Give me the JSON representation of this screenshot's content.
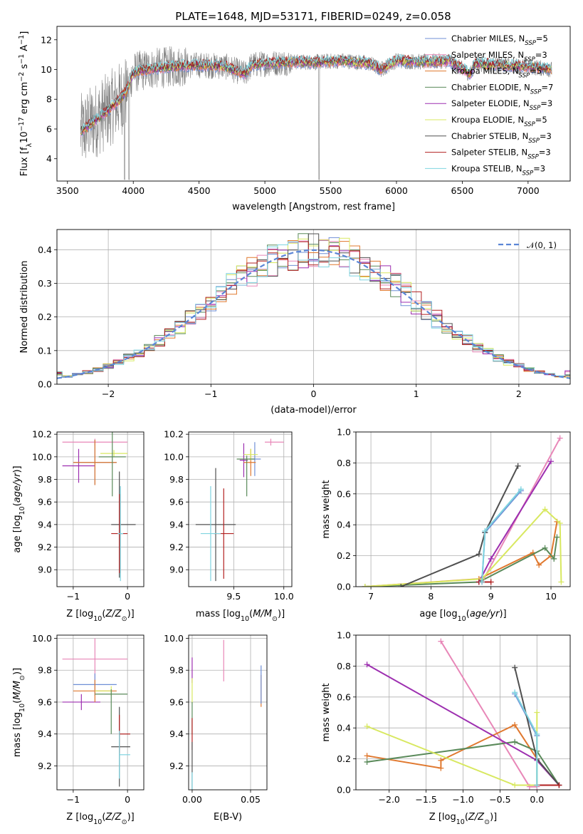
{
  "figure": {
    "title": "PLATE=1648, MJD=53171, FIBERID=0249, z=0.058"
  },
  "colors": {
    "Chabrier MILES": "#6f8fd6",
    "Salpeter MILES": "#e887b8",
    "Kroupa MILES": "#e0782e",
    "Chabrier ELODIE": "#5a8a5a",
    "Salpeter ELODIE": "#9d2fb0",
    "Kroupa ELODIE": "#d8e860",
    "Chabrier STELIB": "#505050",
    "Salpeter STELIB": "#b22020",
    "Kroupa STELIB": "#7fd4e0"
  },
  "chart_data": [
    {
      "id": "spectrum",
      "type": "line",
      "xlabel": "wavelength [Angstrom, rest frame]",
      "ylabel": "Flux [f_λ10^-17 erg cm^-2 s^-1 A^-1]",
      "xlim": [
        3420,
        7320
      ],
      "ylim": [
        2.5,
        12.9
      ],
      "xticks": [
        3500,
        4000,
        4500,
        5000,
        5500,
        6000,
        6500,
        7000
      ],
      "yticks": [
        4,
        6,
        8,
        10,
        12
      ],
      "grid": false,
      "legend": "top-right",
      "observed_color": "#808080",
      "observed_range": [
        3600,
        7180
      ],
      "legend_entries": [
        {
          "name": "Chabrier MILES",
          "label": "Chabrier MILES, N",
          "sub": "SSP",
          "suffix": "=5"
        },
        {
          "name": "Salpeter MILES",
          "label": "Salpeter MILES, N",
          "sub": "SSP",
          "suffix": "=3"
        },
        {
          "name": "Kroupa MILES",
          "label": "Kroupa MILES, N",
          "sub": "SSP",
          "suffix": "=5"
        },
        {
          "name": "Chabrier ELODIE",
          "label": "Chabrier ELODIE, N",
          "sub": "SSP",
          "suffix": "=7"
        },
        {
          "name": "Salpeter ELODIE",
          "label": "Salpeter ELODIE, N",
          "sub": "SSP",
          "suffix": "=3"
        },
        {
          "name": "Kroupa ELODIE",
          "label": "Kroupa ELODIE, N",
          "sub": "SSP",
          "suffix": "=5"
        },
        {
          "name": "Chabrier STELIB",
          "label": "Chabrier STELIB, N",
          "sub": "SSP",
          "suffix": "=3"
        },
        {
          "name": "Salpeter STELIB",
          "label": "Salpeter STELIB, N",
          "sub": "SSP",
          "suffix": "=3"
        },
        {
          "name": "Kroupa STELIB",
          "label": "Kroupa STELIB, N",
          "sub": "SSP",
          "suffix": "=3"
        }
      ],
      "model_continuum": {
        "x": [
          3600,
          3700,
          3800,
          3900,
          3950,
          4000,
          4100,
          4300,
          4500,
          4700,
          4850,
          4900,
          5000,
          5200,
          5400,
          5600,
          5800,
          5880,
          6000,
          6200,
          6400,
          6560,
          6600,
          6800,
          7000,
          7180
        ],
        "y": [
          5.8,
          6.5,
          7.2,
          8.0,
          8.6,
          9.8,
          10.0,
          10.2,
          10.3,
          10.2,
          9.7,
          10.3,
          10.4,
          10.5,
          10.5,
          10.6,
          10.4,
          10.0,
          10.6,
          10.5,
          10.6,
          9.7,
          10.4,
          10.3,
          10.2,
          10.0
        ]
      }
    },
    {
      "id": "residuals",
      "type": "histogram",
      "xlabel": "(data-model)/error",
      "ylabel": "Normed distribution",
      "xlim": [
        -2.5,
        2.5
      ],
      "ylim": [
        0,
        0.46
      ],
      "xticks": [
        -2,
        -1,
        0,
        1,
        2
      ],
      "yticks": [
        0.0,
        0.1,
        0.2,
        0.3,
        0.4
      ],
      "grid": true,
      "legend": "top-right",
      "reference": {
        "label": "𝒩(0, 1)",
        "mean": 0,
        "sd": 1,
        "color": "#5b86d6"
      },
      "bin_width": 0.1
    },
    {
      "id": "age_vs_Z",
      "type": "errorbar",
      "xlabel": "Z [log10(Z/Z⊙)]",
      "ylabel": "age [log10(age/yr)]",
      "xlim": [
        -1.3,
        0.3
      ],
      "ylim": [
        8.85,
        10.22
      ],
      "xticks": [
        -1,
        0
      ],
      "yticks": [
        9.0,
        9.2,
        9.4,
        9.6,
        9.8,
        10.0,
        10.2
      ],
      "grid": true,
      "points": [
        {
          "model": "Salpeter MILES",
          "x": -0.6,
          "xerr": [
            0.6,
            0.6
          ],
          "y": 10.13,
          "yerr": [
            0.03,
            0.03
          ]
        },
        {
          "model": "Salpeter ELODIE",
          "x": -0.9,
          "xerr": [
            0.3,
            0.3
          ],
          "y": 9.92,
          "yerr": [
            0.15,
            0.15
          ]
        },
        {
          "model": "Chabrier MILES",
          "x": -0.6,
          "xerr": [
            0.4,
            0.4
          ],
          "y": 9.95,
          "yerr": [
            0.2,
            0.2
          ]
        },
        {
          "model": "Kroupa MILES",
          "x": -0.6,
          "xerr": [
            0.4,
            0.4
          ],
          "y": 9.95,
          "yerr": [
            0.2,
            0.2
          ]
        },
        {
          "model": "Kroupa ELODIE",
          "x": -0.25,
          "xerr": [
            0.25,
            0.25
          ],
          "y": 10.03,
          "yerr": [
            0.03,
            0.03
          ]
        },
        {
          "model": "Chabrier ELODIE",
          "x": -0.28,
          "xerr": [
            0.25,
            0.25
          ],
          "y": 10.0,
          "yerr": [
            0.35,
            0.35
          ]
        },
        {
          "model": "Chabrier STELIB",
          "x": -0.15,
          "xerr": [
            0.15,
            0.3
          ],
          "y": 9.4,
          "yerr": [
            0.47,
            0.47
          ]
        },
        {
          "model": "Salpeter STELIB",
          "x": -0.15,
          "xerr": [
            0.15,
            0.15
          ],
          "y": 9.32,
          "yerr": [
            0.35,
            0.35
          ]
        },
        {
          "model": "Kroupa STELIB",
          "x": -0.13,
          "xerr": [
            0.05,
            0.05
          ],
          "y": 9.32,
          "yerr": [
            0.42,
            0.42
          ]
        }
      ]
    },
    {
      "id": "age_vs_mass",
      "type": "errorbar",
      "xlabel": "mass [log10(M/M⊙)]",
      "ylabel": "",
      "xlim": [
        9.05,
        10.08
      ],
      "ylim": [
        8.85,
        10.22
      ],
      "xticks": [
        9.5,
        10.0
      ],
      "yticks": [
        9.0,
        9.2,
        9.4,
        9.6,
        9.8,
        10.0,
        10.2
      ],
      "grid": true,
      "points": [
        {
          "model": "Salpeter MILES",
          "x": 9.87,
          "xerr": [
            0.06,
            0.13
          ],
          "y": 10.13,
          "yerr": [
            0.03,
            0.03
          ]
        },
        {
          "model": "Salpeter ELODIE",
          "x": 9.6,
          "xerr": [
            0.04,
            0.04
          ],
          "y": 9.97,
          "yerr": [
            0.15,
            0.15
          ]
        },
        {
          "model": "Chabrier MILES",
          "x": 9.71,
          "xerr": [
            0.06,
            0.06
          ],
          "y": 9.98,
          "yerr": [
            0.15,
            0.15
          ]
        },
        {
          "model": "Kroupa MILES",
          "x": 9.67,
          "xerr": [
            0.07,
            0.05
          ],
          "y": 9.95,
          "yerr": [
            0.12,
            0.12
          ]
        },
        {
          "model": "Kroupa ELODIE",
          "x": 9.67,
          "xerr": [
            0.07,
            0.07
          ],
          "y": 10.02,
          "yerr": [
            0.05,
            0.05
          ]
        },
        {
          "model": "Chabrier ELODIE",
          "x": 9.63,
          "xerr": [
            0.1,
            0.08
          ],
          "y": 9.98,
          "yerr": [
            0.33,
            0.03
          ]
        },
        {
          "model": "Chabrier STELIB",
          "x": 9.32,
          "xerr": [
            0.2,
            0.2
          ],
          "y": 9.4,
          "yerr": [
            0.5,
            0.5
          ]
        },
        {
          "model": "Salpeter STELIB",
          "x": 9.4,
          "xerr": [
            0.1,
            0.1
          ],
          "y": 9.32,
          "yerr": [
            0.4,
            0.4
          ]
        },
        {
          "model": "Kroupa STELIB",
          "x": 9.27,
          "xerr": [
            0.1,
            0.1
          ],
          "y": 9.32,
          "yerr": [
            0.42,
            0.42
          ]
        }
      ]
    },
    {
      "id": "weight_vs_age",
      "type": "line",
      "xlabel": "age [log10(age/yr)]",
      "ylabel": "mass weight",
      "xlim": [
        6.75,
        10.32
      ],
      "ylim": [
        0,
        1.0
      ],
      "xticks": [
        7,
        8,
        9,
        10
      ],
      "yticks": [
        0.0,
        0.2,
        0.4,
        0.6,
        0.8,
        1.0
      ],
      "grid": true,
      "series": [
        {
          "model": "Chabrier MILES",
          "x": [
            8.85,
            8.9,
            9.5
          ],
          "y": [
            0.03,
            0.35,
            0.62
          ]
        },
        {
          "model": "Salpeter MILES",
          "x": [
            8.85,
            10.15
          ],
          "y": [
            0.03,
            0.96
          ]
        },
        {
          "model": "Kroupa MILES",
          "x": [
            6.9,
            8.8,
            9.7,
            9.8,
            10.0,
            10.1
          ],
          "y": [
            0.0,
            0.05,
            0.22,
            0.14,
            0.2,
            0.42
          ]
        },
        {
          "model": "Chabrier ELODIE",
          "x": [
            6.9,
            8.8,
            9.9,
            10.05,
            10.1
          ],
          "y": [
            0.0,
            0.03,
            0.25,
            0.18,
            0.32
          ]
        },
        {
          "model": "Salpeter ELODIE",
          "x": [
            8.8,
            9.0,
            10.0
          ],
          "y": [
            0.03,
            0.18,
            0.81
          ]
        },
        {
          "model": "Kroupa ELODIE",
          "x": [
            6.9,
            8.85,
            9.9,
            10.15,
            10.17
          ],
          "y": [
            0.0,
            0.05,
            0.5,
            0.41,
            0.03
          ]
        },
        {
          "model": "Chabrier STELIB",
          "x": [
            7.5,
            8.8,
            8.9,
            9.45
          ],
          "y": [
            0.0,
            0.21,
            0.35,
            0.78
          ]
        },
        {
          "model": "Salpeter STELIB",
          "x": [
            8.8,
            9.0
          ],
          "y": [
            0.03,
            0.03
          ]
        },
        {
          "model": "Kroupa STELIB",
          "x": [
            8.85,
            8.9,
            9.5
          ],
          "y": [
            0.03,
            0.36,
            0.63
          ]
        }
      ]
    },
    {
      "id": "mass_vs_Z",
      "type": "errorbar",
      "xlabel": "Z [log10(Z/Z⊙)]",
      "ylabel": "mass [log10(M/M⊙)]",
      "xlim": [
        -1.3,
        0.3
      ],
      "ylim": [
        9.05,
        10.02
      ],
      "xticks": [
        -1,
        0
      ],
      "yticks": [
        9.2,
        9.4,
        9.6,
        9.8,
        10.0
      ],
      "grid": true,
      "points": [
        {
          "model": "Salpeter MILES",
          "x": -0.6,
          "xerr": [
            0.6,
            0.6
          ],
          "y": 9.87,
          "yerr": [
            0.13,
            0.13
          ]
        },
        {
          "model": "Salpeter ELODIE",
          "x": -0.85,
          "xerr": [
            0.35,
            0.35
          ],
          "y": 9.6,
          "yerr": [
            0.05,
            0.05
          ]
        },
        {
          "model": "Chabrier MILES",
          "x": -0.6,
          "xerr": [
            0.4,
            0.4
          ],
          "y": 9.71,
          "yerr": [
            0.07,
            0.07
          ]
        },
        {
          "model": "Kroupa MILES",
          "x": -0.6,
          "xerr": [
            0.4,
            0.4
          ],
          "y": 9.67,
          "yerr": [
            0.07,
            0.07
          ]
        },
        {
          "model": "Kroupa ELODIE",
          "x": -0.3,
          "xerr": [
            0.3,
            0.0
          ],
          "y": 9.67,
          "yerr": [
            0.03,
            0.03
          ]
        },
        {
          "model": "Chabrier ELODIE",
          "x": -0.3,
          "xerr": [
            0.3,
            0.3
          ],
          "y": 9.65,
          "yerr": [
            0.25,
            0.03
          ]
        },
        {
          "model": "Chabrier STELIB",
          "x": -0.15,
          "xerr": [
            0.15,
            0.2
          ],
          "y": 9.32,
          "yerr": [
            0.25,
            0.25
          ]
        },
        {
          "model": "Salpeter STELIB",
          "x": -0.15,
          "xerr": [
            0.0,
            0.2
          ],
          "y": 9.4,
          "yerr": [
            0.12,
            0.12
          ]
        },
        {
          "model": "Kroupa STELIB",
          "x": -0.15,
          "xerr": [
            0.0,
            0.2
          ],
          "y": 9.27,
          "yerr": [
            0.15,
            0.15
          ]
        }
      ]
    },
    {
      "id": "mass_vs_ebv",
      "type": "errorbar",
      "xlabel": "E(B-V)",
      "ylabel": "",
      "xlim": [
        -0.003,
        0.064
      ],
      "ylim": [
        9.05,
        10.02
      ],
      "xticks": [
        0.0,
        0.05
      ],
      "xtick_labels": [
        "0.00",
        "0.05"
      ],
      "yticks": [
        9.2,
        9.4,
        9.6,
        9.8,
        10.0
      ],
      "grid": true,
      "points": [
        {
          "model": "Salpeter MILES",
          "x": 0.027,
          "y": 9.86,
          "yerr": [
            0.13,
            0.13
          ]
        },
        {
          "model": "Kroupa MILES",
          "x": 0.059,
          "y": 9.67,
          "yerr": [
            0.1,
            0.1
          ]
        },
        {
          "model": "Chabrier MILES",
          "x": 0.059,
          "y": 9.71,
          "yerr": [
            0.12,
            0.12
          ]
        },
        {
          "model": "Salpeter ELODIE",
          "x": 0.0,
          "y": 9.8,
          "yerr": [
            0.08,
            0.08
          ]
        },
        {
          "model": "Kroupa ELODIE",
          "x": 0.0,
          "y": 9.67,
          "yerr": [
            0.08,
            0.08
          ]
        },
        {
          "model": "Chabrier ELODIE",
          "x": 0.0,
          "y": 9.5,
          "yerr": [
            0.1,
            0.1
          ]
        },
        {
          "model": "Salpeter STELIB",
          "x": 0.0,
          "y": 9.4,
          "yerr": [
            0.1,
            0.1
          ]
        },
        {
          "model": "Chabrier STELIB",
          "x": 0.0,
          "y": 9.2,
          "yerr": [
            0.15,
            0.15
          ]
        },
        {
          "model": "Kroupa STELIB",
          "x": 0.0,
          "y": 9.1,
          "yerr": [
            0.06,
            0.06
          ]
        }
      ]
    },
    {
      "id": "weight_vs_Z",
      "type": "line",
      "xlabel": "Z [log10(Z/Z⊙)]",
      "ylabel": "mass weight",
      "xlim": [
        -2.45,
        0.45
      ],
      "ylim": [
        0,
        1.0
      ],
      "xticks": [
        -2.0,
        -1.5,
        -1.0,
        -0.5,
        0.0
      ],
      "yticks": [
        0.0,
        0.2,
        0.4,
        0.6,
        0.8,
        1.0
      ],
      "grid": true,
      "series": [
        {
          "model": "Chabrier MILES",
          "x": [
            -0.3,
            0.0,
            0.0
          ],
          "y": [
            0.62,
            0.35,
            0.03
          ]
        },
        {
          "model": "Salpeter MILES",
          "x": [
            -1.3,
            -0.1,
            0.0
          ],
          "y": [
            0.96,
            0.02,
            0.02
          ]
        },
        {
          "model": "Kroupa MILES",
          "x": [
            -2.3,
            -1.3,
            -1.3,
            -0.3,
            0.0
          ],
          "y": [
            0.22,
            0.14,
            0.19,
            0.42,
            0.2
          ]
        },
        {
          "model": "Chabrier ELODIE",
          "x": [
            -2.3,
            -0.3,
            0.0,
            0.3
          ],
          "y": [
            0.18,
            0.31,
            0.25,
            0.03
          ]
        },
        {
          "model": "Salpeter ELODIE",
          "x": [
            -2.3,
            0.0,
            0.3
          ],
          "y": [
            0.81,
            0.19,
            0.03
          ]
        },
        {
          "model": "Kroupa ELODIE",
          "x": [
            -2.3,
            -0.3,
            0.0,
            0.0
          ],
          "y": [
            0.41,
            0.03,
            0.03,
            0.5
          ]
        },
        {
          "model": "Chabrier STELIB",
          "x": [
            -0.3,
            0.0,
            0.3
          ],
          "y": [
            0.79,
            0.2,
            0.03
          ]
        },
        {
          "model": "Salpeter STELIB",
          "x": [
            0.0,
            0.3
          ],
          "y": [
            0.03,
            0.03
          ]
        },
        {
          "model": "Kroupa STELIB",
          "x": [
            -0.3,
            0.0,
            0.0
          ],
          "y": [
            0.63,
            0.36,
            0.03
          ]
        }
      ]
    }
  ]
}
